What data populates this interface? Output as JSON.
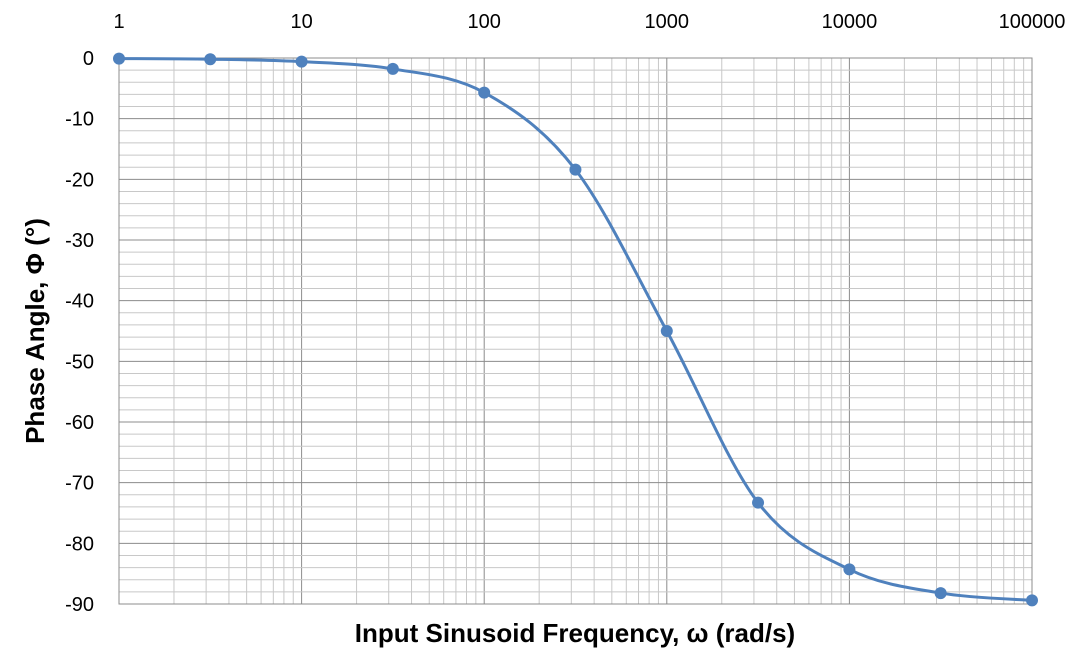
{
  "chart_data": {
    "type": "line",
    "title": "",
    "xlabel": "Input Sinusoid Frequency, ω (rad/s)",
    "ylabel": "Phase Angle, Φ (°)",
    "x_scale": "log",
    "xlim": [
      1,
      100000
    ],
    "ylim": [
      -90,
      0
    ],
    "x_tick_labels": [
      "1",
      "10",
      "100",
      "1000",
      "10000",
      "100000"
    ],
    "y_tick_labels": [
      "0",
      "-10",
      "-20",
      "-30",
      "-40",
      "-50",
      "-60",
      "-70",
      "-80",
      "-90"
    ],
    "grid": "major and minor",
    "legend": "none",
    "line_color": "#4f81bd",
    "marker_color": "#4f81bd",
    "series": [
      {
        "x": [
          1,
          3.16,
          10,
          31.6,
          100,
          316,
          1000,
          3160,
          10000,
          31600,
          100000
        ],
        "values": [
          -0.1,
          -0.2,
          -0.6,
          -1.8,
          -5.7,
          -18.4,
          -45,
          -73.3,
          -84.3,
          -88.2,
          -89.4
        ]
      }
    ]
  }
}
